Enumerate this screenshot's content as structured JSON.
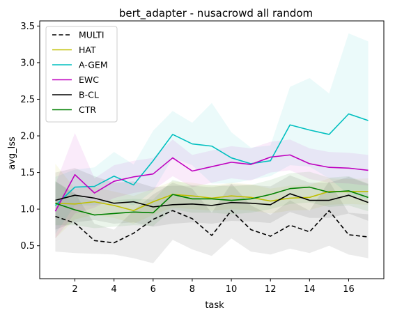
{
  "chart_data": {
    "type": "line",
    "title": "bert_adapter - nusacrowd all random",
    "xlabel": "task",
    "ylabel": "avg_lss",
    "x": [
      1,
      2,
      3,
      4,
      5,
      6,
      7,
      8,
      9,
      10,
      11,
      12,
      13,
      14,
      15,
      16,
      17
    ],
    "xlim": [
      0.2,
      17.8
    ],
    "ylim": [
      0.05,
      3.57
    ],
    "xticks": [
      2,
      4,
      6,
      8,
      10,
      12,
      14,
      16
    ],
    "yticks": [
      0.5,
      1.0,
      1.5,
      2.0,
      2.5,
      3.0,
      3.5
    ],
    "grid": false,
    "legend_position": "top-left",
    "series": [
      {
        "name": "MULTI",
        "color": "#000000",
        "dash": "dashed",
        "values": [
          0.9,
          0.81,
          0.57,
          0.54,
          0.67,
          0.86,
          0.98,
          0.87,
          0.64,
          0.98,
          0.72,
          0.63,
          0.78,
          0.69,
          0.98,
          0.65,
          0.62
        ],
        "lower": [
          0.42,
          0.4,
          0.39,
          0.38,
          0.33,
          0.26,
          0.58,
          0.45,
          0.36,
          0.6,
          0.42,
          0.38,
          0.46,
          0.4,
          0.5,
          0.38,
          0.33
        ],
        "upper": [
          1.38,
          1.22,
          0.8,
          0.72,
          0.98,
          1.2,
          1.36,
          1.28,
          0.95,
          1.35,
          1.05,
          0.92,
          1.12,
          0.98,
          1.38,
          0.95,
          0.93
        ]
      },
      {
        "name": "HAT",
        "color": "#bfbf00",
        "dash": "solid",
        "values": [
          1.08,
          1.07,
          1.1,
          1.05,
          0.98,
          1.1,
          1.2,
          1.18,
          1.15,
          1.18,
          1.16,
          1.11,
          1.15,
          1.16,
          1.24,
          1.24,
          1.24
        ],
        "lower": [
          0.6,
          0.86,
          0.92,
          0.88,
          0.8,
          0.92,
          1.02,
          1.0,
          0.98,
          1.0,
          0.98,
          0.94,
          0.98,
          0.99,
          1.06,
          1.07,
          1.06
        ],
        "upper": [
          1.62,
          1.28,
          1.3,
          1.24,
          1.18,
          1.28,
          1.38,
          1.36,
          1.32,
          1.36,
          1.34,
          1.28,
          1.32,
          1.33,
          1.42,
          1.41,
          1.42
        ]
      },
      {
        "name": "A-GEM",
        "color": "#00bfbf",
        "dash": "solid",
        "values": [
          1.05,
          1.3,
          1.31,
          1.45,
          1.33,
          1.66,
          2.02,
          1.89,
          1.86,
          1.7,
          1.62,
          1.66,
          2.15,
          2.08,
          2.02,
          2.3,
          2.21
        ],
        "lower": [
          0.66,
          1.05,
          1.05,
          1.12,
          1.05,
          1.25,
          1.7,
          1.6,
          1.35,
          1.35,
          1.4,
          1.45,
          1.6,
          1.58,
          1.42,
          1.2,
          1.13
        ],
        "upper": [
          1.44,
          1.54,
          1.57,
          1.78,
          1.61,
          2.07,
          2.34,
          2.18,
          2.45,
          2.05,
          1.84,
          1.87,
          2.67,
          2.79,
          2.58,
          3.4,
          3.29
        ]
      },
      {
        "name": "EWC",
        "color": "#bf00bf",
        "dash": "solid",
        "values": [
          0.97,
          1.47,
          1.22,
          1.38,
          1.44,
          1.48,
          1.7,
          1.52,
          1.58,
          1.64,
          1.61,
          1.71,
          1.74,
          1.62,
          1.57,
          1.56,
          1.53
        ],
        "lower": [
          0.6,
          0.94,
          1.02,
          1.15,
          1.22,
          1.26,
          1.45,
          1.3,
          1.36,
          1.42,
          1.39,
          1.5,
          1.53,
          1.41,
          1.36,
          1.35,
          1.32
        ],
        "upper": [
          1.34,
          2.04,
          1.42,
          1.6,
          1.66,
          1.7,
          1.95,
          1.74,
          1.8,
          1.86,
          1.83,
          1.92,
          1.95,
          1.83,
          1.78,
          1.77,
          1.74
        ]
      },
      {
        "name": "B-CL",
        "color": "#000000",
        "dash": "solid",
        "values": [
          1.12,
          1.19,
          1.15,
          1.08,
          1.1,
          1.03,
          1.06,
          1.07,
          1.05,
          1.09,
          1.08,
          1.06,
          1.21,
          1.12,
          1.12,
          1.19,
          1.09
        ],
        "lower": [
          0.72,
          0.82,
          0.85,
          0.8,
          0.82,
          0.76,
          0.8,
          0.82,
          0.8,
          0.84,
          0.83,
          0.81,
          0.96,
          0.88,
          0.88,
          0.94,
          0.84
        ],
        "upper": [
          1.5,
          1.56,
          1.45,
          1.36,
          1.38,
          1.3,
          1.32,
          1.32,
          1.3,
          1.34,
          1.33,
          1.31,
          1.46,
          1.36,
          1.36,
          1.44,
          1.34
        ]
      },
      {
        "name": "CTR",
        "color": "#008000",
        "dash": "solid",
        "values": [
          1.08,
          0.99,
          0.92,
          0.94,
          0.96,
          0.95,
          1.2,
          1.14,
          1.14,
          1.12,
          1.14,
          1.2,
          1.28,
          1.3,
          1.23,
          1.25,
          1.16
        ],
        "lower": [
          0.78,
          0.78,
          0.74,
          0.76,
          0.78,
          0.77,
          1.0,
          0.95,
          0.95,
          0.93,
          0.95,
          1.0,
          1.07,
          1.09,
          1.03,
          1.05,
          0.97
        ],
        "upper": [
          1.38,
          1.2,
          1.1,
          1.12,
          1.14,
          1.13,
          1.4,
          1.33,
          1.33,
          1.31,
          1.33,
          1.4,
          1.49,
          1.51,
          1.43,
          1.45,
          1.35
        ]
      }
    ]
  }
}
